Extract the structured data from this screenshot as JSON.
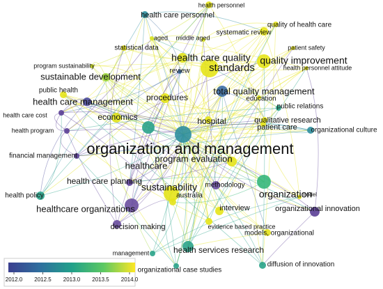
{
  "nodes": [
    {
      "label": "health personnel",
      "color": "#e6e419"
    },
    {
      "label": "health care personnel",
      "color": "#2f8fa0"
    },
    {
      "label": "quality of health care",
      "color": "#e6e419"
    },
    {
      "label": "systematic review",
      "color": "#e6e419"
    },
    {
      "label": "aged",
      "color": "#d8e21f"
    },
    {
      "label": "middle aged",
      "color": "#d8e21f"
    },
    {
      "label": "statistical data",
      "color": "#e6e419"
    },
    {
      "label": "patient safety",
      "color": "#e6e419"
    },
    {
      "label": "program sustainability",
      "color": "#cde11d"
    },
    {
      "label": "health care quality",
      "color": "#e0e31a"
    },
    {
      "label": "quality improvement",
      "color": "#e6e419"
    },
    {
      "label": "standards",
      "color": "#e6e419"
    },
    {
      "label": "health personnel attitude",
      "color": "#e6e419"
    },
    {
      "label": "sustainable development",
      "color": "#9fd83a"
    },
    {
      "label": "review",
      "color": "#3c6da2"
    },
    {
      "label": "total quality management",
      "color": "#3c6da2"
    },
    {
      "label": "public health",
      "color": "#e6e419"
    },
    {
      "label": "health care management",
      "color": "#48489a"
    },
    {
      "label": "procedures",
      "color": "#e6e419"
    },
    {
      "label": "education",
      "color": "#e6e419"
    },
    {
      "label": "public relations",
      "color": "#2fa58a"
    },
    {
      "label": "health care cost",
      "color": "#5b3f96"
    },
    {
      "label": "economics",
      "color": "#e0e31a"
    },
    {
      "label": "hospital",
      "color": "#e6e419"
    },
    {
      "label": "qualitative research",
      "color": "#e6e419"
    },
    {
      "label": "patient care",
      "color": "#e6e419"
    },
    {
      "label": "organizational culture",
      "color": "#2f8fa0"
    },
    {
      "label": "health program",
      "color": "#5b3f96"
    },
    {
      "label": "organization and management",
      "color": "#2f8fa0"
    },
    {
      "label": "financial management",
      "color": "#5b3f96"
    },
    {
      "label": "program evaluation",
      "color": "#e6e419"
    },
    {
      "label": "healthcare",
      "color": "#2aa389"
    },
    {
      "label": "health care planning",
      "color": "#5b3f96"
    },
    {
      "label": "sustainability",
      "color": "#e6e419"
    },
    {
      "label": "methodology",
      "color": "#6a4fa0"
    },
    {
      "label": "organization",
      "color": "#36b77a"
    },
    {
      "label": "australia",
      "color": "#e6e419"
    },
    {
      "label": "model",
      "color": "#e6e419"
    },
    {
      "label": "health policy",
      "color": "#2aa389"
    },
    {
      "label": "healthcare organizations",
      "color": "#6a4fa0"
    },
    {
      "label": "interview",
      "color": "#e6e419"
    },
    {
      "label": "organizational innovation",
      "color": "#5b3f96"
    },
    {
      "label": "decision making",
      "color": "#6a4fa0"
    },
    {
      "label": "evidence based practice",
      "color": "#e6e419"
    },
    {
      "label": "models, organizational",
      "color": "#e6e419"
    },
    {
      "label": "management",
      "color": "#2aa389"
    },
    {
      "label": "health services research",
      "color": "#2aa389"
    },
    {
      "label": "diffusion of innovation",
      "color": "#2aa389"
    },
    {
      "label": "organizational case studies",
      "color": "#2aa389"
    }
  ],
  "color_scale": {
    "lim": [
      2012,
      2014
    ],
    "colors": [
      "#3b3f8f",
      "#2f6f9e",
      "#21a08a",
      "#5cc863",
      "#fde725"
    ],
    "ticks": [
      {
        "value": 2012,
        "label": "2012.0"
      },
      {
        "value": 2012.5,
        "label": "2012.5"
      },
      {
        "value": 2013,
        "label": "2013.0"
      },
      {
        "value": 2013.5,
        "label": "2013.5"
      },
      {
        "value": 2014,
        "label": "2014.0"
      }
    ]
  }
}
